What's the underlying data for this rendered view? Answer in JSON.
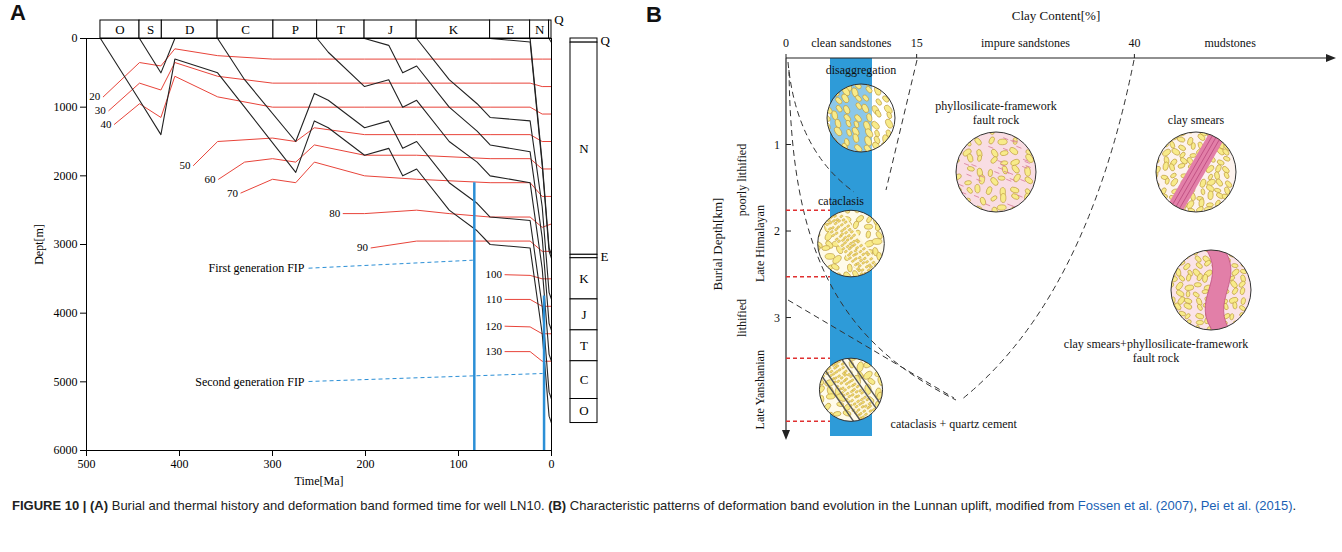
{
  "chart_data": {
    "type": "line",
    "panel_label": "A",
    "xlabel": "Time[Ma]",
    "ylabel": "Dept[m]",
    "xlim": [
      500,
      0
    ],
    "xticks": [
      500,
      400,
      300,
      200,
      100,
      0
    ],
    "ylim": [
      0,
      6000
    ],
    "yticks": [
      0,
      1000,
      2000,
      3000,
      4000,
      5000,
      6000
    ],
    "periods": [
      {
        "name": "O",
        "start": 485,
        "end": 443
      },
      {
        "name": "S",
        "start": 443,
        "end": 419
      },
      {
        "name": "D",
        "start": 419,
        "end": 359
      },
      {
        "name": "C",
        "start": 359,
        "end": 299
      },
      {
        "name": "P",
        "start": 299,
        "end": 252
      },
      {
        "name": "T",
        "start": 252,
        "end": 201
      },
      {
        "name": "J",
        "start": 201,
        "end": 145
      },
      {
        "name": "K",
        "start": 145,
        "end": 66
      },
      {
        "name": "E",
        "start": 66,
        "end": 23
      },
      {
        "name": "N",
        "start": 23,
        "end": 2.6
      },
      {
        "name": "Q",
        "start": 2.6,
        "end": 0
      }
    ],
    "burial_curves": [
      {
        "color": "#222222",
        "x": [
          485,
          443,
          420,
          405,
          359,
          330,
          275,
          255,
          240,
          201,
          175,
          160,
          145,
          110,
          80,
          66,
          23,
          10,
          2.6,
          0
        ],
        "values": [
          0,
          900,
          1400,
          300,
          500,
          1000,
          1950,
          1200,
          1300,
          1700,
          1600,
          2000,
          1900,
          2500,
          2800,
          3000,
          3050,
          4300,
          5500,
          5600
        ]
      },
      {
        "color": "#222222",
        "x": [
          443,
          420,
          405
        ],
        "values": [
          0,
          500,
          0
        ]
      },
      {
        "color": "#222222",
        "x": [
          359,
          330,
          275,
          255,
          240,
          201,
          175,
          160,
          145,
          110,
          80,
          66,
          23,
          10,
          2.6,
          0
        ],
        "values": [
          0,
          600,
          1500,
          800,
          900,
          1300,
          1200,
          1600,
          1500,
          2100,
          2400,
          2600,
          2650,
          3900,
          5150,
          5250
        ]
      },
      {
        "color": "#222222",
        "x": [
          252,
          240,
          201,
          175,
          160,
          145,
          110,
          80,
          66,
          23,
          10,
          2.6,
          0
        ],
        "values": [
          0,
          200,
          700,
          600,
          1000,
          900,
          1500,
          1800,
          2000,
          2100,
          3350,
          4600,
          4700
        ]
      },
      {
        "color": "#222222",
        "x": [
          201,
          175,
          160,
          145,
          110,
          80,
          66,
          23,
          10,
          2.6,
          0
        ],
        "values": [
          0,
          100,
          500,
          400,
          1000,
          1350,
          1550,
          1650,
          2900,
          4150,
          4250
        ]
      },
      {
        "color": "#222222",
        "x": [
          145,
          110,
          80,
          66,
          23,
          10,
          2.6,
          0
        ],
        "values": [
          0,
          600,
          950,
          1150,
          1200,
          2450,
          3700,
          3800
        ]
      },
      {
        "color": "#222222",
        "x": [
          66,
          23,
          10,
          2.6,
          0
        ],
        "values": [
          0,
          50,
          1850,
          3100,
          3200
        ]
      },
      {
        "color": "#222222",
        "x": [
          23,
          10,
          2.6,
          0
        ],
        "values": [
          0,
          1800,
          3050,
          3150
        ]
      },
      {
        "color": "#222222",
        "x": [
          2.6,
          0
        ],
        "values": [
          0,
          60
        ]
      }
    ],
    "isotherms": [
      {
        "label": 20,
        "color": "#e8443a",
        "x": [
          482,
          443,
          420,
          405,
          359,
          300,
          252,
          201,
          145,
          66,
          23,
          10,
          0
        ],
        "values": [
          850,
          350,
          400,
          150,
          250,
          300,
          300,
          300,
          300,
          300,
          300,
          300,
          300
        ]
      },
      {
        "label": 30,
        "color": "#e8443a",
        "x": [
          476,
          443,
          420,
          405,
          359,
          300,
          252,
          201,
          145,
          66,
          23,
          10,
          0
        ],
        "values": [
          1050,
          650,
          750,
          350,
          550,
          650,
          650,
          650,
          650,
          650,
          650,
          700,
          700
        ]
      },
      {
        "label": 40,
        "color": "#e8443a",
        "x": [
          470,
          443,
          420,
          405,
          359,
          300,
          252,
          201,
          145,
          66,
          23,
          10,
          0
        ],
        "values": [
          1250,
          950,
          1150,
          550,
          850,
          1000,
          1000,
          1000,
          1000,
          1000,
          1000,
          1100,
          1100
        ]
      },
      {
        "label": 50,
        "color": "#e8443a",
        "x": [
          385,
          359,
          300,
          275,
          255,
          201,
          145,
          66,
          23,
          10,
          0
        ],
        "values": [
          1850,
          1500,
          1450,
          1500,
          1300,
          1400,
          1400,
          1400,
          1400,
          1500,
          1500
        ]
      },
      {
        "label": 60,
        "color": "#e8443a",
        "x": [
          358,
          330,
          300,
          275,
          255,
          201,
          145,
          66,
          23,
          10,
          0
        ],
        "values": [
          2050,
          1800,
          1750,
          1800,
          1550,
          1700,
          1700,
          1750,
          1750,
          1900,
          1900
        ]
      },
      {
        "label": 70,
        "color": "#e8443a",
        "x": [
          334,
          300,
          275,
          255,
          201,
          145,
          66,
          23,
          10,
          0
        ],
        "values": [
          2250,
          2050,
          2100,
          1800,
          2000,
          2050,
          2100,
          2100,
          2300,
          2300
        ]
      },
      {
        "label": 80,
        "color": "#e8443a",
        "x": [
          224,
          201,
          145,
          110,
          66,
          23,
          10,
          0
        ],
        "values": [
          2550,
          2550,
          2500,
          2550,
          2600,
          2600,
          2750,
          2700
        ]
      },
      {
        "label": 90,
        "color": "#e8443a",
        "x": [
          194,
          145,
          110,
          66,
          23,
          10,
          0
        ],
        "values": [
          3050,
          2950,
          2950,
          2950,
          2950,
          3100,
          3100
        ]
      },
      {
        "label": 100,
        "color": "#e8443a",
        "x": [
          50,
          23,
          10,
          0
        ],
        "values": [
          3440,
          3450,
          3500,
          3500
        ]
      },
      {
        "label": 110,
        "color": "#e8443a",
        "x": [
          50,
          23,
          10,
          0
        ],
        "values": [
          3800,
          3800,
          3900,
          3900
        ]
      },
      {
        "label": 120,
        "color": "#e8443a",
        "x": [
          50,
          23,
          10,
          0
        ],
        "values": [
          4190,
          4200,
          4300,
          4300
        ]
      },
      {
        "label": 130,
        "color": "#e8443a",
        "x": [
          50,
          23,
          10,
          0
        ],
        "values": [
          4560,
          4560,
          4700,
          4700
        ]
      }
    ],
    "fip": [
      {
        "label": "First generation FIP",
        "x": 83,
        "depth": [
          2100,
          6000
        ],
        "color": "#2b8fd6"
      },
      {
        "label": "Second generation FIP",
        "x": 8,
        "depth": [
          3750,
          6000
        ],
        "color": "#2b8fd6"
      }
    ],
    "stratigraphy": [
      {
        "name": "Q",
        "top": 0,
        "base": 60
      },
      {
        "name": "N",
        "top": 60,
        "base": 3150
      },
      {
        "name": "E",
        "top": 3150,
        "base": 3200
      },
      {
        "name": "K",
        "top": 3200,
        "base": 3800
      },
      {
        "name": "J",
        "top": 3800,
        "base": 4250
      },
      {
        "name": "T",
        "top": 4250,
        "base": 4700
      },
      {
        "name": "C",
        "top": 4700,
        "base": 5250
      },
      {
        "name": "O",
        "top": 5250,
        "base": 5600
      }
    ]
  },
  "diagram": {
    "panel_label": "B",
    "x_axis": {
      "label": "Clay Content[%]",
      "lim": [
        0,
        62
      ],
      "ticks": [
        0,
        15,
        40
      ],
      "classes": [
        "clean sandstones",
        "impure sandstones",
        "mudstones"
      ]
    },
    "y_axis": {
      "label": "Burial Depth[km]",
      "lim": [
        0,
        4.3
      ],
      "ticks": [
        1,
        2,
        3
      ]
    },
    "lithification": [
      "poorly lithified",
      "lithified"
    ],
    "ranges": [
      {
        "label": "Late Himalayan",
        "depth": [
          1.76,
          2.53
        ]
      },
      {
        "label": "Late Yanshanian",
        "depth": [
          3.47,
          4.2
        ]
      }
    ],
    "mechanisms": [
      {
        "label": "disaggregation"
      },
      {
        "label": "phyllosilicate-framework fault rock"
      },
      {
        "label": "clay smears"
      },
      {
        "label": "cataclasis"
      },
      {
        "label": "clay smears+phyllosilicate-framework fault rock"
      },
      {
        "label": "cataclasis + quartz cement"
      }
    ]
  },
  "caption": [
    {
      "text": "FIGURE 10 | (A)",
      "style": "bold"
    },
    {
      "text": " Burial and thermal history and deformation band formed time for well LN10. ",
      "style": "plain"
    },
    {
      "text": "(B)",
      "style": "bold"
    },
    {
      "text": " Characteristic patterns of deformation band evolution in the Lunnan uplift, modified from ",
      "style": "plain"
    },
    {
      "text": "Fossen et al. (2007)",
      "style": "link"
    },
    {
      "text": ", ",
      "style": "plain"
    },
    {
      "text": "Pei et al. (2015)",
      "style": "link"
    },
    {
      "text": ".",
      "style": "plain"
    }
  ]
}
